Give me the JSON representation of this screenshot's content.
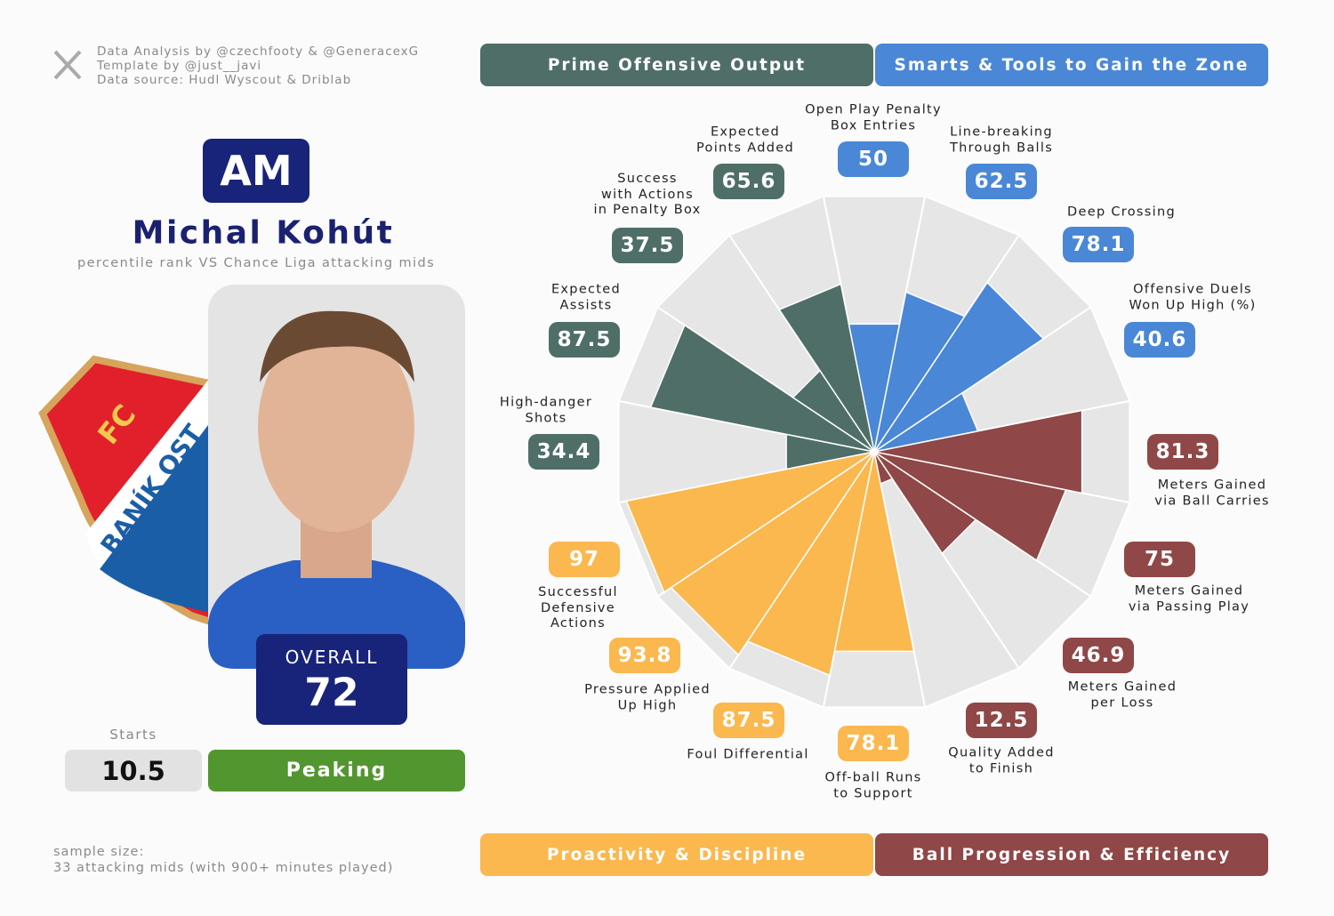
{
  "credits": [
    "Data Analysis by @czechfooty & @GeneracexG",
    "Template by @just__javi",
    "Data source: Hudl Wyscout & Driblab"
  ],
  "position": "AM",
  "player": "Michal Kohút",
  "subtitle": "percentile rank VS Chance Liga attacking mids",
  "logo": {
    "top": "FC",
    "bottom": "BANÍK OST"
  },
  "overall": {
    "label": "OVERALL",
    "value": 72
  },
  "starts": {
    "label": "Starts",
    "value": 10.5
  },
  "status": "Peaking",
  "sample": [
    "sample size:",
    "33 attacking mids (with 900+ minutes played)"
  ],
  "chart_data": {
    "type": "polar-bar",
    "categories": [
      "Open Play Penalty\nBox Entries",
      "Line-breaking\nThrough Balls",
      "Deep Crossing",
      "Offensive Duels\nWon Up High (%)",
      "Meters Gained\nvia Ball Carries",
      "Meters Gained\nvia Passing Play",
      "Meters Gained\nper Loss",
      "Quality Added\nto Finish",
      "Off-ball Runs\nto Support",
      "Foul Differential",
      "Pressure Applied\nUp High",
      "Successful\nDefensive\nActions",
      "High-danger\nShots",
      "Expected\nAssists",
      "Success\nwith Actions\nin Penalty Box",
      "Expected\nPoints Added"
    ],
    "series": [
      {
        "name": "Prime Offensive Output",
        "color": "#4f6e68",
        "values": [
          null,
          null,
          null,
          null,
          null,
          null,
          null,
          null,
          null,
          null,
          null,
          null,
          34.4,
          87.5,
          37.5,
          65.6
        ]
      },
      {
        "name": "Smarts & Tools to Gain the Zone",
        "color": "#4a87d6",
        "values": [
          50,
          62.5,
          78.1,
          40.6,
          null,
          null,
          null,
          null,
          null,
          null,
          null,
          null,
          null,
          null,
          null,
          null
        ]
      },
      {
        "name": "Proactivity & Discipline",
        "color": "#fbb84f",
        "values": [
          null,
          null,
          null,
          null,
          null,
          null,
          null,
          null,
          78.1,
          87.5,
          93.8,
          97,
          null,
          null,
          null,
          null
        ]
      },
      {
        "name": "Ball Progression & Efficiency",
        "color": "#8f4747",
        "values": [
          null,
          null,
          null,
          null,
          81.3,
          75,
          46.9,
          12.5,
          null,
          null,
          null,
          null,
          null,
          null,
          null,
          null
        ]
      }
    ],
    "ylim": [
      0,
      100
    ]
  }
}
